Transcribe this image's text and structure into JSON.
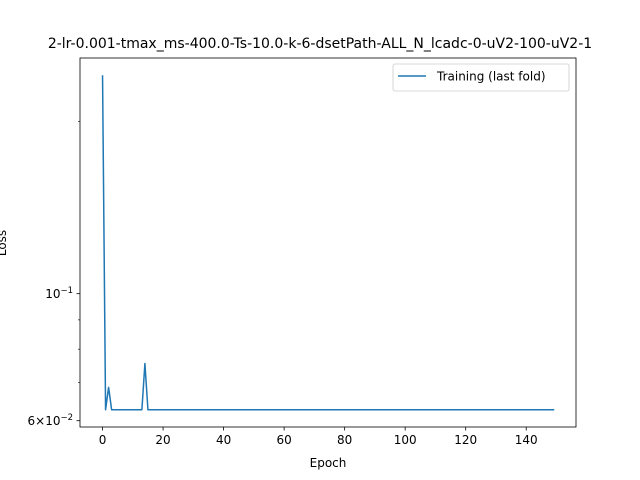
{
  "chart_data": {
    "type": "line",
    "title": "2-lr-0.001-tmax_ms-400.0-Ts-10.0-k-6-dsetPath-ALL_N_lcadc-0-uV2-100-uV2-1",
    "xlabel": "Epoch",
    "ylabel": "Loss",
    "yscale": "log",
    "xlim": [
      -7.45,
      156.45
    ],
    "ylim": [
      0.0585,
      0.258
    ],
    "xticks": [
      0,
      20,
      40,
      60,
      80,
      100,
      120,
      140
    ],
    "xtick_labels": [
      "0",
      "20",
      "40",
      "60",
      "80",
      "100",
      "120",
      "140"
    ],
    "yticks": [
      0.06,
      0.1
    ],
    "ytick_labels": {
      "0.06": {
        "base": "6×10",
        "exp": "−2"
      },
      "0.1": {
        "base": "10",
        "exp": "−1"
      }
    },
    "grid": false,
    "legend_position": "upper right",
    "series": [
      {
        "name": "Training (last fold)",
        "color": "#1f77b4",
        "x": [
          0,
          1,
          2,
          3,
          13,
          14,
          15,
          149
        ],
        "y": [
          0.24,
          0.0627,
          0.0686,
          0.0627,
          0.0627,
          0.0755,
          0.0627,
          0.0627
        ]
      }
    ]
  }
}
